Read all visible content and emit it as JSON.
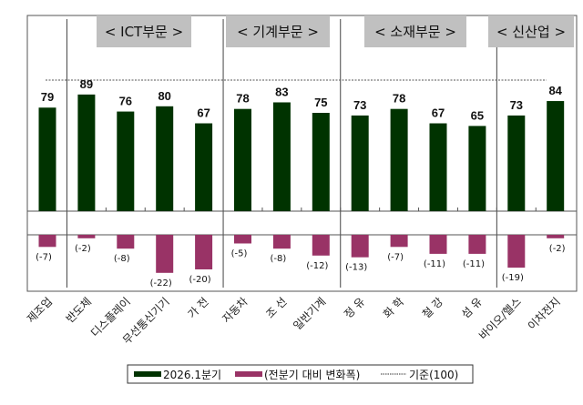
{
  "chart_data": {
    "type": "bar",
    "categories": [
      "제조업",
      "반도체",
      "디스플레이",
      "무선통신기기",
      "가 전",
      "자동차",
      "조 선",
      "일반기계",
      "정 유",
      "화 학",
      "철 강",
      "섬 유",
      "바이오/헬스",
      "이차전지"
    ],
    "series": [
      {
        "name": "2026.1분기",
        "values": [
          79,
          89,
          76,
          80,
          67,
          78,
          83,
          75,
          73,
          78,
          67,
          65,
          73,
          84
        ],
        "color": "#003300"
      },
      {
        "name": "(전분기 대비 변화폭)",
        "values": [
          -7,
          -2,
          -8,
          -22,
          -20,
          -5,
          -8,
          -12,
          -13,
          -7,
          -11,
          -11,
          -19,
          -2
        ],
        "color": "#993366"
      }
    ],
    "change_labels": [
      "(-7)",
      "(-2)",
      "(-8)",
      "(-22)",
      "(-20)",
      "(-5)",
      "(-8)",
      "(-12)",
      "(-13)",
      "(-7)",
      "(-11)",
      "(-11)",
      "(-19)",
      "(-2)"
    ],
    "reference": {
      "name": "기준(100)",
      "value": 100
    },
    "groups": [
      {
        "label": "< ICT부문 >",
        "from": 1,
        "to": 4
      },
      {
        "label": "< 기계부문 >",
        "from": 5,
        "to": 7
      },
      {
        "label": "< 소재부문 >",
        "from": 8,
        "to": 11
      },
      {
        "label": "< 신산업 >",
        "from": 12,
        "to": 13
      }
    ],
    "legend_position": "bottom",
    "grid": false
  }
}
